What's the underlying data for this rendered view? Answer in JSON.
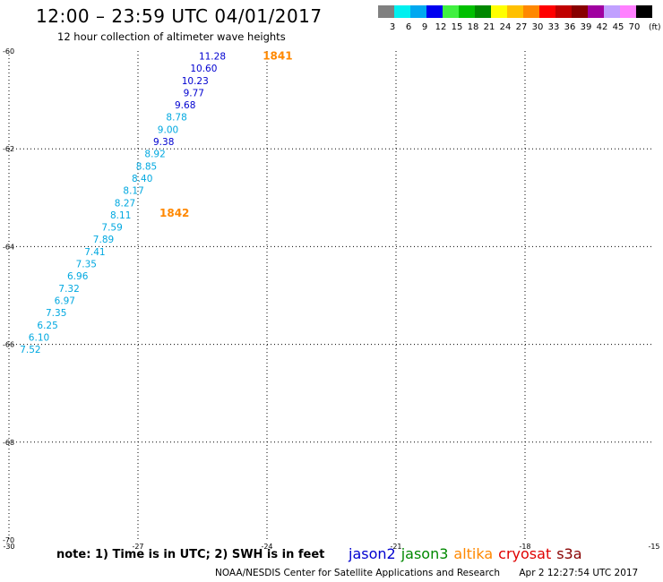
{
  "title": "12:00 – 23:59 UTC 04/01/2017",
  "subtitle": "12 hour collection of altimeter wave heights",
  "colorbar": {
    "bins": [
      {
        "color": "#808080",
        "label": "3"
      },
      {
        "color": "#00f0f0",
        "label": "6"
      },
      {
        "color": "#00a8f0",
        "label": "9"
      },
      {
        "color": "#0000f0",
        "label": "12"
      },
      {
        "color": "#40f040",
        "label": "15"
      },
      {
        "color": "#00c000",
        "label": "18"
      },
      {
        "color": "#008800",
        "label": "21"
      },
      {
        "color": "#ffff00",
        "label": "24"
      },
      {
        "color": "#ffc000",
        "label": "27"
      },
      {
        "color": "#ff8800",
        "label": "30"
      },
      {
        "color": "#ff0000",
        "label": "33"
      },
      {
        "color": "#c00000",
        "label": "36"
      },
      {
        "color": "#880000",
        "label": "39"
      },
      {
        "color": "#a000a0",
        "label": "42"
      },
      {
        "color": "#c0a0ff",
        "label": "45"
      },
      {
        "color": "#ff80ff",
        "label": "70"
      },
      {
        "color": "#000000",
        "label": ""
      }
    ],
    "unit_label": "(ft)"
  },
  "footer": {
    "note": "note: 1) Time is in UTC; 2) SWH is in feet",
    "satellites": [
      {
        "name": "jason2",
        "color": "#0000d0"
      },
      {
        "name": "jason3",
        "color": "#008800"
      },
      {
        "name": "altika",
        "color": "#ff8800"
      },
      {
        "name": "cryosat",
        "color": "#e00000"
      },
      {
        "name": "s3a",
        "color": "#880000"
      }
    ],
    "credit_org": "NOAA/NESDIS Center for Satellite Applications and Research",
    "credit_date": "Apr  2 12:27:54 UTC 2017"
  },
  "chart_data": {
    "type": "scatter",
    "xlim": [
      -30,
      -15
    ],
    "ylim": [
      -70,
      -60
    ],
    "x_ticks": [
      -30,
      -27,
      -24,
      -21,
      -18,
      -15
    ],
    "y_ticks": [
      -60,
      -62,
      -64,
      -66,
      -68,
      -70
    ],
    "grid": true,
    "points": [
      {
        "lon": -25.0,
        "lat": -60.1,
        "label": "11.28",
        "color": "#0000d0"
      },
      {
        "lon": -25.2,
        "lat": -60.35,
        "label": "10.60",
        "color": "#0000d0"
      },
      {
        "lon": -25.4,
        "lat": -60.6,
        "label": "10.23",
        "color": "#0000d0"
      },
      {
        "lon": -25.5,
        "lat": -60.85,
        "label": "9.77",
        "color": "#0000d0"
      },
      {
        "lon": -25.7,
        "lat": -61.1,
        "label": "9.68",
        "color": "#0000d0"
      },
      {
        "lon": -25.9,
        "lat": -61.35,
        "label": "8.78",
        "color": "#00a8e0"
      },
      {
        "lon": -26.1,
        "lat": -61.6,
        "label": "9.00",
        "color": "#00a8e0"
      },
      {
        "lon": -26.2,
        "lat": -61.85,
        "label": "9.38",
        "color": "#0000d0"
      },
      {
        "lon": -26.4,
        "lat": -62.1,
        "label": "8.92",
        "color": "#00a8e0"
      },
      {
        "lon": -26.6,
        "lat": -62.35,
        "label": "8.85",
        "color": "#00a8e0"
      },
      {
        "lon": -26.7,
        "lat": -62.6,
        "label": "8.40",
        "color": "#00a8e0"
      },
      {
        "lon": -26.9,
        "lat": -62.85,
        "label": "8.17",
        "color": "#00a8e0"
      },
      {
        "lon": -27.1,
        "lat": -63.1,
        "label": "8.27",
        "color": "#00a8e0"
      },
      {
        "lon": -27.2,
        "lat": -63.35,
        "label": "8.11",
        "color": "#00a8e0"
      },
      {
        "lon": -27.4,
        "lat": -63.6,
        "label": "7.59",
        "color": "#00a8e0"
      },
      {
        "lon": -27.6,
        "lat": -63.85,
        "label": "7.89",
        "color": "#00a8e0"
      },
      {
        "lon": -27.8,
        "lat": -64.1,
        "label": "7.41",
        "color": "#00a8e0"
      },
      {
        "lon": -28.0,
        "lat": -64.35,
        "label": "7.35",
        "color": "#00a8e0"
      },
      {
        "lon": -28.2,
        "lat": -64.6,
        "label": "6.96",
        "color": "#00a8e0"
      },
      {
        "lon": -28.4,
        "lat": -64.85,
        "label": "7.32",
        "color": "#00a8e0"
      },
      {
        "lon": -28.5,
        "lat": -65.1,
        "label": "6.97",
        "color": "#00a8e0"
      },
      {
        "lon": -28.7,
        "lat": -65.35,
        "label": "7.35",
        "color": "#00a8e0"
      },
      {
        "lon": -28.9,
        "lat": -65.6,
        "label": "6.25",
        "color": "#00a8e0"
      },
      {
        "lon": -29.1,
        "lat": -65.85,
        "label": "6.10",
        "color": "#00a8e0"
      },
      {
        "lon": -29.3,
        "lat": -66.1,
        "label": "7.52",
        "color": "#00a8e0"
      }
    ],
    "time_labels": [
      {
        "lon": -24.1,
        "lat": -60.08,
        "label": "1841",
        "color": "#ff8800"
      },
      {
        "lon": -26.5,
        "lat": -63.3,
        "label": "1842",
        "color": "#ff8800"
      }
    ]
  }
}
